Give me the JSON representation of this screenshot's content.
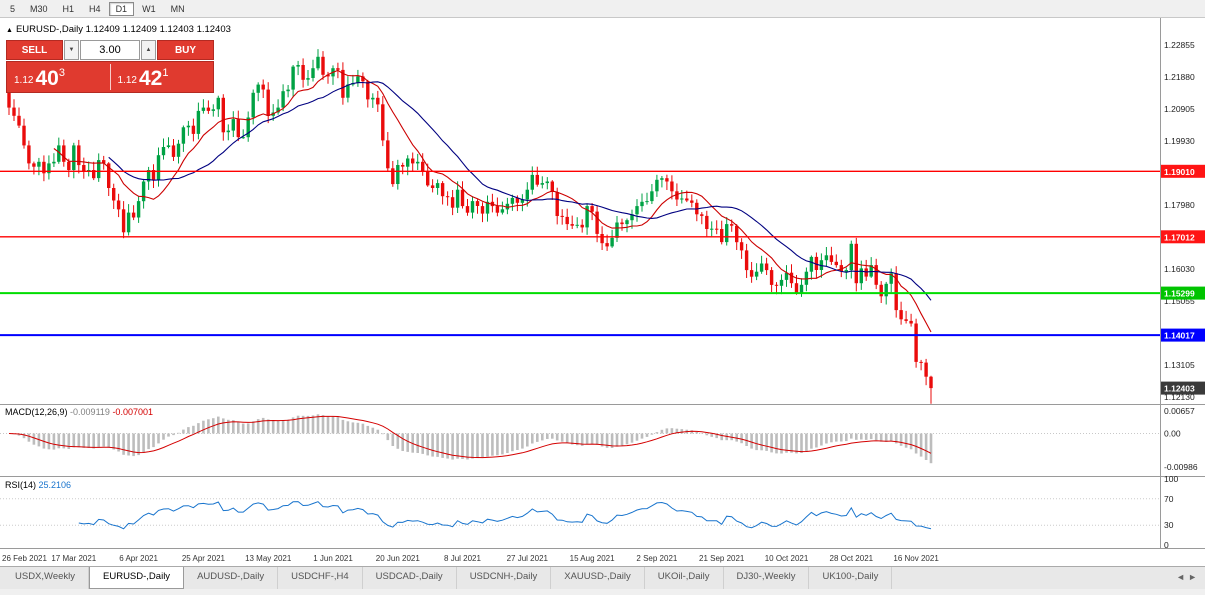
{
  "toolbar": {
    "timeframes": [
      {
        "label": "5",
        "active": false
      },
      {
        "label": "M30",
        "active": false
      },
      {
        "label": "H1",
        "active": false
      },
      {
        "label": "H4",
        "active": false
      },
      {
        "label": "D1",
        "active": true
      },
      {
        "label": "W1",
        "active": false
      },
      {
        "label": "MN",
        "active": false
      }
    ]
  },
  "chart_header": {
    "collapse_icon": "▲",
    "symbol": "EURUSD-,Daily",
    "ohlc": "1.12409 1.12409 1.12403 1.12403"
  },
  "trade_panel": {
    "sell_label": "SELL",
    "buy_label": "BUY",
    "volume": "3.00",
    "vol_down_icon": "▼",
    "vol_up_icon": "▲",
    "bid_small": "1.12",
    "bid_big": "40",
    "bid_sup": "3",
    "ask_small": "1.12",
    "ask_big": "42",
    "ask_sup": "1"
  },
  "price_axis": {
    "gridline_labels": [
      "1.22855",
      "1.21880",
      "1.20905",
      "1.19930",
      "1.18955",
      "1.17980",
      "1.17005",
      "1.16030",
      "1.15055",
      "1.14080",
      "1.13105",
      "1.12130"
    ],
    "current": {
      "price": 1.12403,
      "label": "1.12403",
      "color": "#3a3a3a"
    }
  },
  "hlines": [
    {
      "price": 1.1901,
      "label": "1.19010",
      "color": "#ff0000",
      "box_color": "#ff1414",
      "width": 1.4
    },
    {
      "price": 1.17012,
      "label": "1.17012",
      "color": "#ff0000",
      "box_color": "#ff1414",
      "width": 1.4
    },
    {
      "price": 1.15299,
      "label": "1.15299",
      "color": "#00dd00",
      "box_color": "#00c400",
      "width": 2
    },
    {
      "price": 1.14017,
      "label": "1.14017",
      "color": "#0000ff",
      "box_color": "#0000ff",
      "width": 2
    }
  ],
  "macd_panel": {
    "name": "MACD(12,26,9)",
    "value1": "-0.009119",
    "value2": "-0.007001",
    "axis": [
      "0.00657",
      "0.00",
      "-0.00986"
    ],
    "axis_values": [
      0.00657,
      0,
      -0.00986
    ]
  },
  "rsi_panel": {
    "name": "RSI(14)",
    "value": "25.2106",
    "axis": [
      "100",
      "70",
      "30",
      "0"
    ],
    "levels": [
      70,
      30
    ]
  },
  "date_axis": {
    "labels": [
      "26 Feb 2021",
      "17 Mar 2021",
      "6 Apr 2021",
      "25 Apr 2021",
      "13 May 2021",
      "1 Jun 2021",
      "20 Jun 2021",
      "8 Jul 2021",
      "27 Jul 2021",
      "15 Aug 2021",
      "2 Sep 2021",
      "21 Sep 2021",
      "10 Oct 2021",
      "28 Oct 2021",
      "16 Nov 2021"
    ]
  },
  "tabs": {
    "items": [
      {
        "label": "USDX,Weekly",
        "active": false
      },
      {
        "label": "EURUSD-,Daily",
        "active": true
      },
      {
        "label": "AUDUSD-,Daily",
        "active": false
      },
      {
        "label": "USDCHF-,H4",
        "active": false
      },
      {
        "label": "USDCAD-,Daily",
        "active": false
      },
      {
        "label": "USDCNH-,Daily",
        "active": false
      },
      {
        "label": "XAUUSD-,Daily",
        "active": false
      },
      {
        "label": "UKOil-,Daily",
        "active": false
      },
      {
        "label": "DJ30-,Weekly",
        "active": false
      },
      {
        "label": "UK100-,Daily",
        "active": false
      }
    ],
    "scroll_left": "◄",
    "scroll_right": "►"
  },
  "chart_data": {
    "type": "candlestick",
    "symbol": "EURUSD-",
    "timeframe": "Daily",
    "title": "EURUSD-,Daily",
    "price_scale": {
      "top": 1.2362,
      "bottom": 1.1204
    },
    "up_color": "#00a244",
    "down_color": "#ea0b0b",
    "ma_fast": {
      "period": 10,
      "color": "#cc0000"
    },
    "ma_slow": {
      "period": 21,
      "color": "#000080"
    },
    "macd": {
      "fast": 12,
      "slow": 26,
      "signal": 9
    },
    "rsi_period": 14,
    "first_open": 1.216,
    "label_indices": [
      0,
      13,
      26,
      39,
      52,
      65,
      78,
      91,
      104,
      117,
      130,
      143,
      156,
      169,
      182
    ],
    "closes": [
      1.2095,
      1.207,
      1.204,
      1.198,
      1.1925,
      1.1915,
      1.193,
      1.1895,
      1.1925,
      1.193,
      1.198,
      1.193,
      1.1905,
      1.198,
      1.192,
      1.19,
      1.1905,
      1.188,
      1.1935,
      1.1925,
      1.185,
      1.1812,
      1.1785,
      1.1715,
      1.1775,
      1.176,
      1.181,
      1.187,
      1.1905,
      1.1875,
      1.195,
      1.1975,
      1.198,
      1.1945,
      1.1985,
      1.2035,
      1.204,
      1.2015,
      1.2085,
      1.2095,
      1.2085,
      1.209,
      1.2125,
      1.202,
      1.2025,
      1.206,
      1.2005,
      1.2005,
      1.2065,
      1.214,
      1.2165,
      1.215,
      1.207,
      1.208,
      1.2095,
      1.2145,
      1.215,
      1.222,
      1.2225,
      1.218,
      1.2185,
      1.2215,
      1.225,
      1.2195,
      1.219,
      1.2215,
      1.221,
      1.2125,
      1.2165,
      1.217,
      1.219,
      1.2175,
      1.212,
      1.2125,
      1.2105,
      1.1995,
      1.191,
      1.1862,
      1.192,
      1.1915,
      1.194,
      1.1925,
      1.193,
      1.19,
      1.1858,
      1.185,
      1.1865,
      1.1825,
      1.1822,
      1.179,
      1.1845,
      1.1795,
      1.1775,
      1.181,
      1.1795,
      1.1772,
      1.1808,
      1.1795,
      1.1775,
      1.1785,
      1.1802,
      1.182,
      1.1805,
      1.1815,
      1.1845,
      1.189,
      1.186,
      1.1865,
      1.187,
      1.1838,
      1.1765,
      1.1762,
      1.174,
      1.1735,
      1.1738,
      1.173,
      1.1795,
      1.1778,
      1.171,
      1.1682,
      1.1672,
      1.1698,
      1.1745,
      1.174,
      1.1752,
      1.177,
      1.1795,
      1.1808,
      1.181,
      1.184,
      1.1875,
      1.188,
      1.187,
      1.184,
      1.1815,
      1.1818,
      1.1812,
      1.1805,
      1.177,
      1.1765,
      1.1725,
      1.1726,
      1.1725,
      1.1685,
      1.174,
      1.1735,
      1.1685,
      1.166,
      1.16,
      1.158,
      1.1595,
      1.162,
      1.16,
      1.1555,
      1.1552,
      1.157,
      1.1592,
      1.156,
      1.153,
      1.1555,
      1.1595,
      1.164,
      1.16,
      1.163,
      1.1645,
      1.1625,
      1.1615,
      1.1595,
      1.16,
      1.168,
      1.156,
      1.1605,
      1.158,
      1.1615,
      1.1555,
      1.152,
      1.1558,
      1.159,
      1.1478,
      1.145,
      1.1445,
      1.1437,
      1.132,
      1.1318,
      1.1275,
      1.12403
    ]
  }
}
